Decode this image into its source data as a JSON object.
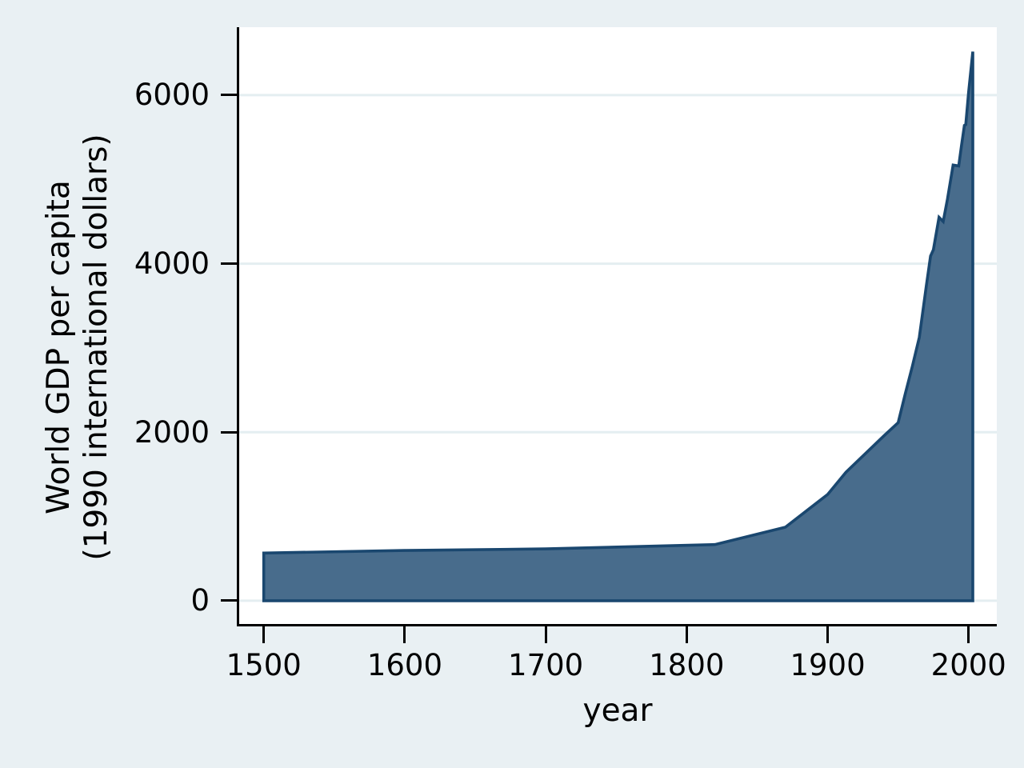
{
  "figure": {
    "background_color": "#E9F0F3",
    "plot_background_color": "#FFFFFF",
    "gridline_color": "#E4EEF1",
    "axis_color": "#000000",
    "text_color": "#000000",
    "area_fill_color": "#486C8C",
    "area_line_color": "#1A476F"
  },
  "chart_data": {
    "type": "area",
    "title": "",
    "xlabel": "year",
    "ylabel_lines": [
      "World GDP per capita",
      "(1990 international dollars)"
    ],
    "series": [
      {
        "name": "World GDP per capita (1990 international dollars)",
        "x": [
          1500,
          1600,
          1700,
          1820,
          1870,
          1900,
          1913,
          1940,
          1950,
          1955,
          1960,
          1965,
          1970,
          1973,
          1975,
          1979,
          1982,
          1985,
          1989,
          1993,
          1995,
          1997,
          1998,
          2000,
          2003
        ],
        "y": [
          566,
          596,
          615,
          667,
          873,
          1262,
          1526,
          1958,
          2113,
          2452,
          2777,
          3124,
          3736,
          4091,
          4164,
          4550,
          4500,
          4764,
          5170,
          5160,
          5404,
          5640,
          5650,
          6038,
          6516
        ]
      }
    ],
    "baseline": 0,
    "x_ticks": [
      1500,
      1600,
      1700,
      1800,
      1900,
      2000
    ],
    "y_ticks": [
      0,
      2000,
      4000,
      6000
    ],
    "xlim": [
      1482,
      2020
    ],
    "ylim": [
      -295,
      6806
    ],
    "grid": "horizontal gridlines at y ticks",
    "legend": "none"
  }
}
